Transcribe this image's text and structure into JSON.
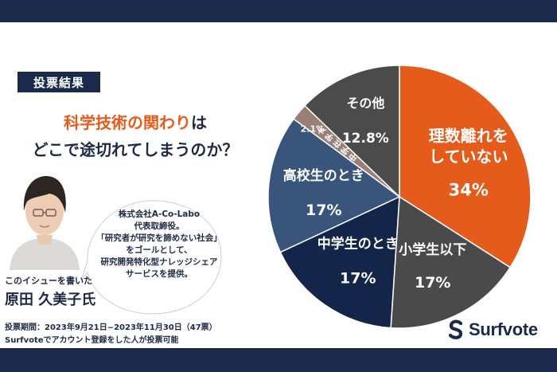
{
  "badge": "投票結果",
  "title": {
    "line1_highlight": "科学技術の関わり",
    "line1_suffix": "は",
    "line2": "どこで途切れてしまうのか？"
  },
  "author": {
    "desc_lines": [
      "株式会社A-Co-Labo",
      "代表取締役。",
      "「研究者が研究を諦めない社会」",
      "をゴールとして、",
      "研究開発特化型ナレッジシェア",
      "サービスを提供。"
    ],
    "caption": "このイシューを書いた",
    "name": "原田 久美子氏"
  },
  "footer": {
    "period": "投票期間：2023年9月21日~2023年11月30日（47票）",
    "eligibility": "Surfvoteでアカウント登録をした人が投票可能"
  },
  "logo": {
    "text": "Surfvote",
    "icon": "surfvote-s-icon"
  },
  "colors": {
    "navy": "#1b2a4a",
    "orange": "#e45b1c",
    "dark_gray": "#4a4a4a",
    "navy_slice": "#14254a",
    "blue_slice": "#3a557b",
    "mauve_slice": "#9a7f78",
    "gray_slice": "#4b4b4b"
  },
  "chart_data": {
    "type": "pie",
    "title": "",
    "slices": [
      {
        "label_lines": [
          "理数離れを",
          "していない"
        ],
        "value": 34,
        "value_label": "34%",
        "color": "#e45b1c"
      },
      {
        "label_lines": [
          "小学生以下"
        ],
        "value": 17,
        "value_label": "17%",
        "color": "#4a4a4a"
      },
      {
        "label_lines": [
          "中学生のとき"
        ],
        "value": 17,
        "value_label": "17%",
        "color": "#14254a"
      },
      {
        "label_lines": [
          "高校生のとき"
        ],
        "value": 17,
        "value_label": "17%",
        "color": "#3a557b"
      },
      {
        "label_lines": [
          "大学在学中"
        ],
        "value": 2.1,
        "value_label": "2.1%",
        "color": "#9a7f78"
      },
      {
        "label_lines": [
          "その他"
        ],
        "value": 12.8,
        "value_label": "12.8%",
        "color": "#4b4b4b"
      }
    ]
  }
}
